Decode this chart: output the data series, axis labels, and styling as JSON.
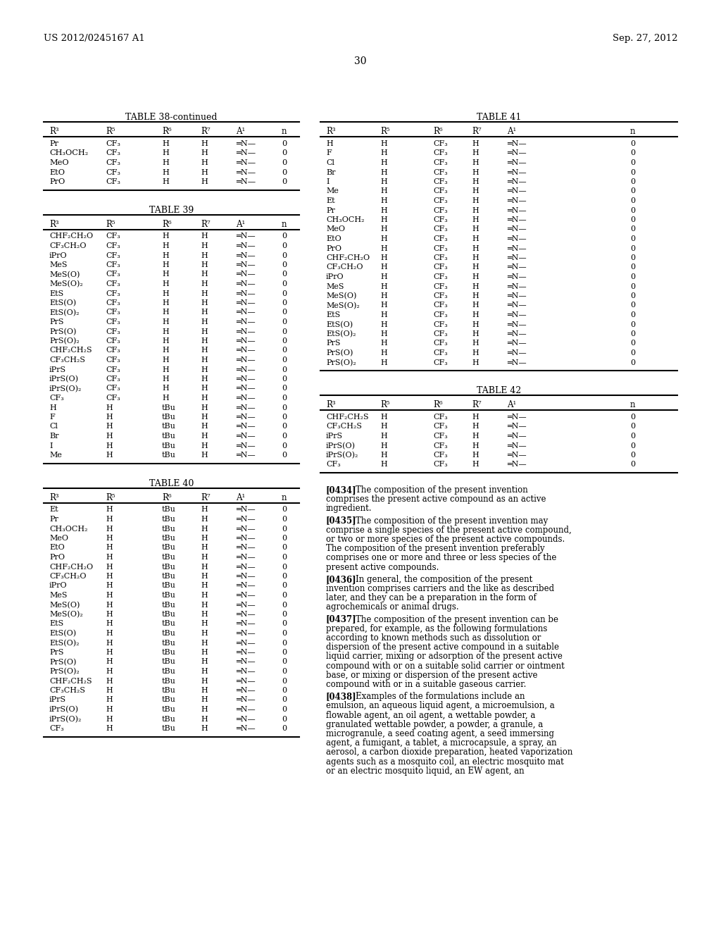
{
  "header_left": "US 2012/0245167 A1",
  "header_right": "Sep. 27, 2012",
  "page_number": "30",
  "background_color": "#ffffff",
  "text_color": "#000000",
  "table38_continued": {
    "title": "TABLE 38-continued",
    "columns": [
      "R³",
      "R⁵",
      "R⁶",
      "R⁷",
      "A¹",
      "n"
    ],
    "rows": [
      [
        "Pr",
        "CF₃",
        "H",
        "H",
        "═N—",
        "0"
      ],
      [
        "CH₃OCH₂",
        "CF₃",
        "H",
        "H",
        "═N—",
        "0"
      ],
      [
        "MeO",
        "CF₃",
        "H",
        "H",
        "═N—",
        "0"
      ],
      [
        "EtO",
        "CF₃",
        "H",
        "H",
        "═N—",
        "0"
      ],
      [
        "PrO",
        "CF₃",
        "H",
        "H",
        "═N—",
        "0"
      ]
    ]
  },
  "table39": {
    "title": "TABLE 39",
    "columns": [
      "R³",
      "R⁵",
      "R⁶",
      "R⁷",
      "A¹",
      "n"
    ],
    "rows": [
      [
        "CHF₂CH₂O",
        "CF₃",
        "H",
        "H",
        "═N—",
        "0"
      ],
      [
        "CF₃CH₂O",
        "CF₃",
        "H",
        "H",
        "═N—",
        "0"
      ],
      [
        "iPrO",
        "CF₃",
        "H",
        "H",
        "═N—",
        "0"
      ],
      [
        "MeS",
        "CF₃",
        "H",
        "H",
        "═N—",
        "0"
      ],
      [
        "MeS(O)",
        "CF₃",
        "H",
        "H",
        "═N—",
        "0"
      ],
      [
        "MeS(O)₂",
        "CF₃",
        "H",
        "H",
        "═N—",
        "0"
      ],
      [
        "EtS",
        "CF₃",
        "H",
        "H",
        "═N—",
        "0"
      ],
      [
        "EtS(O)",
        "CF₃",
        "H",
        "H",
        "═N—",
        "0"
      ],
      [
        "EtS(O)₂",
        "CF₃",
        "H",
        "H",
        "═N—",
        "0"
      ],
      [
        "PrS",
        "CF₃",
        "H",
        "H",
        "═N—",
        "0"
      ],
      [
        "PrS(O)",
        "CF₃",
        "H",
        "H",
        "═N—",
        "0"
      ],
      [
        "PrS(O)₂",
        "CF₃",
        "H",
        "H",
        "═N—",
        "0"
      ],
      [
        "CHF₂CH₂S",
        "CF₃",
        "H",
        "H",
        "═N—",
        "0"
      ],
      [
        "CF₃CH₂S",
        "CF₃",
        "H",
        "H",
        "═N—",
        "0"
      ],
      [
        "iPrS",
        "CF₃",
        "H",
        "H",
        "═N—",
        "0"
      ],
      [
        "iPrS(O)",
        "CF₃",
        "H",
        "H",
        "═N—",
        "0"
      ],
      [
        "iPrS(O)₂",
        "CF₃",
        "H",
        "H",
        "═N—",
        "0"
      ],
      [
        "CF₃",
        "CF₃",
        "H",
        "H",
        "═N—",
        "0"
      ],
      [
        "H",
        "H",
        "tBu",
        "H",
        "═N—",
        "0"
      ],
      [
        "F",
        "H",
        "tBu",
        "H",
        "═N—",
        "0"
      ],
      [
        "Cl",
        "H",
        "tBu",
        "H",
        "═N—",
        "0"
      ],
      [
        "Br",
        "H",
        "tBu",
        "H",
        "═N—",
        "0"
      ],
      [
        "I",
        "H",
        "tBu",
        "H",
        "═N—",
        "0"
      ],
      [
        "Me",
        "H",
        "tBu",
        "H",
        "═N—",
        "0"
      ]
    ]
  },
  "table40": {
    "title": "TABLE 40",
    "columns": [
      "R³",
      "R⁵",
      "R⁶",
      "R⁷",
      "A¹",
      "n"
    ],
    "rows": [
      [
        "Et",
        "H",
        "tBu",
        "H",
        "═N—",
        "0"
      ],
      [
        "Pr",
        "H",
        "tBu",
        "H",
        "═N—",
        "0"
      ],
      [
        "CH₃OCH₂",
        "H",
        "tBu",
        "H",
        "═N—",
        "0"
      ],
      [
        "MeO",
        "H",
        "tBu",
        "H",
        "═N—",
        "0"
      ],
      [
        "EtO",
        "H",
        "tBu",
        "H",
        "═N—",
        "0"
      ],
      [
        "PrO",
        "H",
        "tBu",
        "H",
        "═N—",
        "0"
      ],
      [
        "CHF₂CH₂O",
        "H",
        "tBu",
        "H",
        "═N—",
        "0"
      ],
      [
        "CF₃CH₂O",
        "H",
        "tBu",
        "H",
        "═N—",
        "0"
      ],
      [
        "iPrO",
        "H",
        "tBu",
        "H",
        "═N—",
        "0"
      ],
      [
        "MeS",
        "H",
        "tBu",
        "H",
        "═N—",
        "0"
      ],
      [
        "MeS(O)",
        "H",
        "tBu",
        "H",
        "═N—",
        "0"
      ],
      [
        "MeS(O)₂",
        "H",
        "tBu",
        "H",
        "═N—",
        "0"
      ],
      [
        "EtS",
        "H",
        "tBu",
        "H",
        "═N—",
        "0"
      ],
      [
        "EtS(O)",
        "H",
        "tBu",
        "H",
        "═N—",
        "0"
      ],
      [
        "EtS(O)₂",
        "H",
        "tBu",
        "H",
        "═N—",
        "0"
      ],
      [
        "PrS",
        "H",
        "tBu",
        "H",
        "═N—",
        "0"
      ],
      [
        "PrS(O)",
        "H",
        "tBu",
        "H",
        "═N—",
        "0"
      ],
      [
        "PrS(O)₂",
        "H",
        "tBu",
        "H",
        "═N—",
        "0"
      ],
      [
        "CHF₂CH₂S",
        "H",
        "tBu",
        "H",
        "═N—",
        "0"
      ],
      [
        "CF₃CH₂S",
        "H",
        "tBu",
        "H",
        "═N—",
        "0"
      ],
      [
        "iPrS",
        "H",
        "tBu",
        "H",
        "═N—",
        "0"
      ],
      [
        "iPrS(O)",
        "H",
        "tBu",
        "H",
        "═N—",
        "0"
      ],
      [
        "iPrS(O)₂",
        "H",
        "tBu",
        "H",
        "═N—",
        "0"
      ],
      [
        "CF₃",
        "H",
        "tBu",
        "H",
        "═N—",
        "0"
      ]
    ]
  },
  "table41": {
    "title": "TABLE 41",
    "columns": [
      "R³",
      "R⁵",
      "R⁶",
      "R⁷",
      "A¹",
      "n"
    ],
    "rows": [
      [
        "H",
        "H",
        "CF₃",
        "H",
        "═N—",
        "0"
      ],
      [
        "F",
        "H",
        "CF₃",
        "H",
        "═N—",
        "0"
      ],
      [
        "Cl",
        "H",
        "CF₃",
        "H",
        "═N—",
        "0"
      ],
      [
        "Br",
        "H",
        "CF₃",
        "H",
        "═N—",
        "0"
      ],
      [
        "I",
        "H",
        "CF₃",
        "H",
        "═N—",
        "0"
      ],
      [
        "Me",
        "H",
        "CF₃",
        "H",
        "═N—",
        "0"
      ],
      [
        "Et",
        "H",
        "CF₃",
        "H",
        "═N—",
        "0"
      ],
      [
        "Pr",
        "H",
        "CF₃",
        "H",
        "═N—",
        "0"
      ],
      [
        "CH₃OCH₂",
        "H",
        "CF₃",
        "H",
        "═N—",
        "0"
      ],
      [
        "MeO",
        "H",
        "CF₃",
        "H",
        "═N—",
        "0"
      ],
      [
        "EtO",
        "H",
        "CF₃",
        "H",
        "═N—",
        "0"
      ],
      [
        "PrO",
        "H",
        "CF₃",
        "H",
        "═N—",
        "0"
      ],
      [
        "CHF₂CH₂O",
        "H",
        "CF₃",
        "H",
        "═N—",
        "0"
      ],
      [
        "CF₃CH₂O",
        "H",
        "CF₃",
        "H",
        "═N—",
        "0"
      ],
      [
        "iPrO",
        "H",
        "CF₃",
        "H",
        "═N—",
        "0"
      ],
      [
        "MeS",
        "H",
        "CF₃",
        "H",
        "═N—",
        "0"
      ],
      [
        "MeS(O)",
        "H",
        "CF₃",
        "H",
        "═N—",
        "0"
      ],
      [
        "MeS(O)₂",
        "H",
        "CF₃",
        "H",
        "═N—",
        "0"
      ],
      [
        "EtS",
        "H",
        "CF₃",
        "H",
        "═N—",
        "0"
      ],
      [
        "EtS(O)",
        "H",
        "CF₃",
        "H",
        "═N—",
        "0"
      ],
      [
        "EtS(O)₂",
        "H",
        "CF₃",
        "H",
        "═N—",
        "0"
      ],
      [
        "PrS",
        "H",
        "CF₃",
        "H",
        "═N—",
        "0"
      ],
      [
        "PrS(O)",
        "H",
        "CF₃",
        "H",
        "═N—",
        "0"
      ],
      [
        "PrS(O)₂",
        "H",
        "CF₃",
        "H",
        "═N—",
        "0"
      ]
    ]
  },
  "table42": {
    "title": "TABLE 42",
    "columns": [
      "R³",
      "R⁵",
      "R⁶",
      "R⁷",
      "A¹",
      "n"
    ],
    "rows": [
      [
        "CHF₂CH₂S",
        "H",
        "CF₃",
        "H",
        "═N—",
        "0"
      ],
      [
        "CF₃CH₂S",
        "H",
        "CF₃",
        "H",
        "═N—",
        "0"
      ],
      [
        "iPrS",
        "H",
        "CF₃",
        "H",
        "═N—",
        "0"
      ],
      [
        "iPrS(O)",
        "H",
        "CF₃",
        "H",
        "═N—",
        "0"
      ],
      [
        "iPrS(O)₂",
        "H",
        "CF₃",
        "H",
        "═N—",
        "0"
      ],
      [
        "CF₃",
        "H",
        "CF₃",
        "H",
        "═N—",
        "0"
      ]
    ]
  },
  "paragraphs": [
    [
      "[0434]",
      "The composition of the present invention comprises the present active compound as an active ingredient."
    ],
    [
      "[0435]",
      "The composition of the present invention may comprise a single species of the present active compound, or two or more species of the present active compounds. The composition of the present invention preferably comprises one or more and three or less species of the present active compounds."
    ],
    [
      "[0436]",
      "In general, the composition of the present invention comprises carriers and the like as described later, and they can be a preparation in the form of agrochemicals or animal drugs."
    ],
    [
      "[0437]",
      "The composition of the present invention can be prepared, for example, as the following formulations according to known methods such as dissolution or dispersion of the present active compound in a suitable liquid carrier, mixing or adsorption of the present active compound with or on a suitable solid carrier or ointment base, or mixing or dispersion of the present active compound with or in a suitable gaseous carrier."
    ],
    [
      "[0438]",
      "Examples of the formulations include an emulsion, an aqueous liquid agent, a microemulsion, a flowable agent, an oil agent, a wettable powder, a granulated wettable powder, a powder, a granule, a microgranule, a seed coating agent, a seed immersing agent, a fumigant, a tablet, a microcapsule, a spray, an aerosol, a carbon dioxide preparation, heated vaporization agents such as a mosquito coil, an electric mosquito mat or an electric mosquito liquid, an EW agent, an"
    ]
  ]
}
